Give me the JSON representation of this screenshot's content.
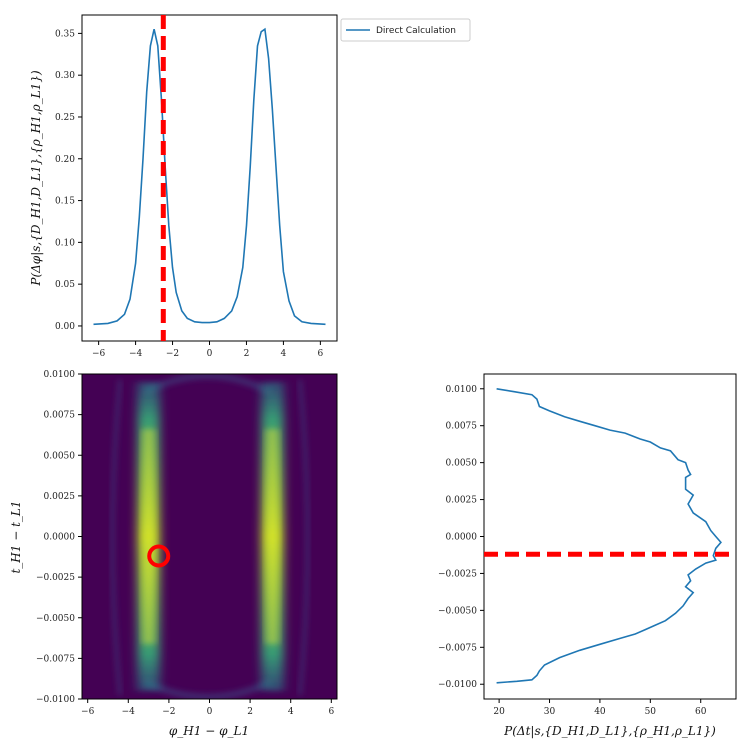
{
  "chart_data": [
    {
      "id": "top_marginal",
      "type": "line",
      "title": "",
      "xlabel": "",
      "ylabel": "P(Δφ|s,{D_H1,D_L1},{ρ_H1,ρ_L1})",
      "xlim": [
        -6.9,
        6.9
      ],
      "ylim": [
        -0.018,
        0.372
      ],
      "xticks": [
        -6,
        -4,
        -2,
        0,
        2,
        4,
        6
      ],
      "xtick_labels": [
        "−6",
        "−4",
        "−2",
        "0",
        "2",
        "4",
        "6"
      ],
      "yticks": [
        0.0,
        0.05,
        0.1,
        0.15,
        0.2,
        0.25,
        0.3,
        0.35
      ],
      "ytick_labels": [
        "0.00",
        "0.05",
        "0.10",
        "0.15",
        "0.20",
        "0.25",
        "0.30",
        "0.35"
      ],
      "series": [
        {
          "name": "Direct Calculation",
          "color": "#1f77b4",
          "x": [
            -6.28,
            -5.5,
            -5.0,
            -4.6,
            -4.3,
            -4.0,
            -3.8,
            -3.6,
            -3.4,
            -3.2,
            -3.0,
            -2.8,
            -2.6,
            -2.4,
            -2.2,
            -2.0,
            -1.8,
            -1.5,
            -1.2,
            -0.8,
            -0.4,
            0.0,
            0.4,
            0.8,
            1.2,
            1.5,
            1.8,
            2.0,
            2.2,
            2.4,
            2.6,
            2.8,
            3.0,
            3.2,
            3.4,
            3.6,
            3.8,
            4.0,
            4.3,
            4.6,
            5.0,
            5.5,
            6.28
          ],
          "y": [
            0.002,
            0.003,
            0.006,
            0.014,
            0.032,
            0.075,
            0.13,
            0.2,
            0.28,
            0.335,
            0.355,
            0.335,
            0.27,
            0.19,
            0.12,
            0.07,
            0.04,
            0.018,
            0.009,
            0.005,
            0.004,
            0.004,
            0.005,
            0.009,
            0.018,
            0.035,
            0.07,
            0.12,
            0.19,
            0.27,
            0.335,
            0.352,
            0.355,
            0.32,
            0.26,
            0.19,
            0.12,
            0.065,
            0.03,
            0.012,
            0.005,
            0.003,
            0.002
          ]
        }
      ],
      "vline": {
        "x": -2.5,
        "color": "#ff0000",
        "style": "dashed"
      },
      "legend": {
        "position": "outside-top-right",
        "entries": [
          "Direct Calculation"
        ]
      }
    },
    {
      "id": "joint_heatmap",
      "type": "heatmap",
      "title": "",
      "xlabel": "φ_H1 − φ_L1",
      "ylabel": "t_H1 − t_L1",
      "xlim": [
        -6.28,
        6.28
      ],
      "ylim": [
        -0.01,
        0.01
      ],
      "xticks": [
        -6,
        -4,
        -2,
        0,
        2,
        4,
        6
      ],
      "xtick_labels": [
        "−6",
        "−4",
        "−2",
        "0",
        "2",
        "4",
        "6"
      ],
      "yticks": [
        -0.01,
        -0.0075,
        -0.005,
        -0.0025,
        0.0,
        0.0025,
        0.005,
        0.0075,
        0.01
      ],
      "ytick_labels": [
        "−0.0100",
        "−0.0075",
        "−0.0050",
        "−0.0025",
        "0.0000",
        "0.0025",
        "0.0050",
        "0.0075",
        "0.0100"
      ],
      "colormap": "viridis",
      "bands": [
        {
          "phi_center": -3.0,
          "phi_width": 0.55
        },
        {
          "phi_center": 3.1,
          "phi_width": 0.55
        }
      ],
      "marker": {
        "x": -2.5,
        "y": -0.0012,
        "shape": "circle",
        "color": "#ff0000"
      }
    },
    {
      "id": "right_marginal",
      "type": "line",
      "title": "",
      "xlabel": "P(Δt|s,{D_H1,D_L1},{ρ_H1,ρ_L1})",
      "ylabel": "",
      "xlim": [
        17,
        67
      ],
      "ylim": [
        -0.011,
        0.011
      ],
      "xticks": [
        20,
        30,
        40,
        50,
        60
      ],
      "xtick_labels": [
        "20",
        "30",
        "40",
        "50",
        "60"
      ],
      "yticks": [
        -0.01,
        -0.0075,
        -0.005,
        -0.0025,
        0.0,
        0.0025,
        0.005,
        0.0075,
        0.01
      ],
      "ytick_labels": [
        "−0.0100",
        "−0.0075",
        "−0.0050",
        "−0.0025",
        "0.0000",
        "0.0025",
        "0.0050",
        "0.0075",
        "0.0100"
      ],
      "series": [
        {
          "name": "",
          "color": "#1f77b4",
          "x": [
            19.5,
            23,
            26.5,
            27.5,
            28,
            30,
            33,
            36,
            39,
            42,
            45,
            48,
            50,
            52,
            54,
            55.5,
            57,
            57.5,
            58,
            57,
            57,
            58.5,
            57.5,
            58.5,
            61,
            62,
            63,
            64,
            63,
            62.5,
            63,
            61,
            59,
            57.5,
            58,
            57,
            58.5,
            57.5,
            56.5,
            55,
            53,
            51,
            49,
            47,
            44,
            40,
            36,
            32,
            29,
            28,
            27.5,
            26.5,
            23.5,
            19.5
          ],
          "y": [
            0.01,
            0.0098,
            0.0096,
            0.0093,
            0.0088,
            0.0085,
            0.0081,
            0.0078,
            0.0075,
            0.0072,
            0.007,
            0.0066,
            0.0064,
            0.006,
            0.0058,
            0.0052,
            0.005,
            0.0045,
            0.0042,
            0.004,
            0.0032,
            0.0028,
            0.0022,
            0.0016,
            0.001,
            0.0004,
            0.0,
            -0.0004,
            -0.0008,
            -0.0013,
            -0.0016,
            -0.0018,
            -0.0022,
            -0.0026,
            -0.003,
            -0.0034,
            -0.0038,
            -0.0042,
            -0.0047,
            -0.0052,
            -0.0057,
            -0.006,
            -0.0063,
            -0.0066,
            -0.0069,
            -0.0073,
            -0.0077,
            -0.0082,
            -0.0087,
            -0.0091,
            -0.0094,
            -0.0097,
            -0.0098,
            -0.0099
          ]
        }
      ],
      "hline": {
        "y": -0.0012,
        "color": "#ff0000",
        "style": "dashed"
      }
    }
  ]
}
